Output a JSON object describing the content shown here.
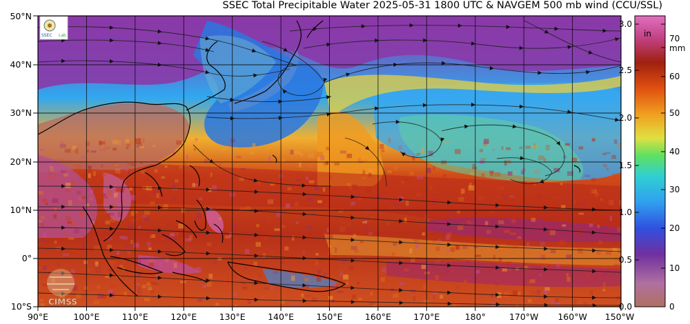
{
  "title": "SSEC Total Precipitable Water  2025-05-31 1800 UTC & NAVGEM 500 mb wind (CCU/SSL)",
  "lat_labels": [
    "50°N",
    "40°N",
    "30°N",
    "20°N",
    "10°N",
    "0°",
    "10°S"
  ],
  "lon_labels": [
    "90°E",
    "100°E",
    "110°E",
    "120°E",
    "130°E",
    "140°E",
    "150°E",
    "160°E",
    "170°E",
    "180°",
    "170°W",
    "160°W",
    "150°W"
  ],
  "colorbar_in": {
    "unit": "in",
    "ticks": [
      "3.0",
      "2.5",
      "2.0",
      "1.5",
      "1.0",
      "0.5",
      "0.0"
    ]
  },
  "colorbar_mm": {
    "unit": "mm",
    "ticks": [
      "70",
      "60",
      "50",
      "40",
      "30",
      "20",
      "10",
      "0"
    ]
  },
  "colors": {
    "ocean_moist": "#c8401c",
    "very_moist": "#8c2a6c",
    "dry_blue": "#2e8ce0",
    "mid_green": "#7cd07c",
    "orange": "#f0901c",
    "yellow": "#f0d040",
    "land_mauve": "#a86090"
  },
  "logos": {
    "top": "SSEC",
    "bottom": "CIMSS"
  }
}
